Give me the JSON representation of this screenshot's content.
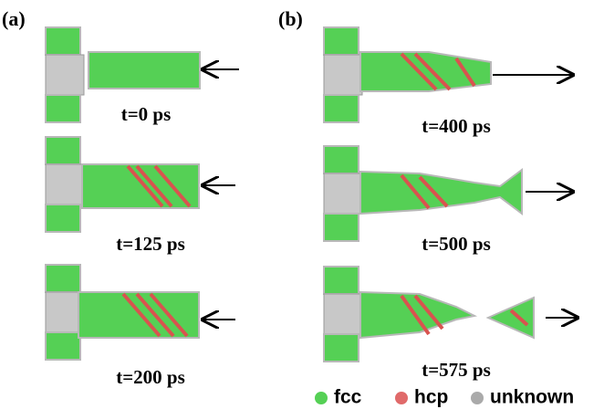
{
  "panels": [
    {
      "label": "(a)",
      "snapshots": [
        "t=0 ps",
        "t=125 ps",
        "t=200 ps"
      ]
    },
    {
      "label": "(b)",
      "snapshots": [
        "t=400 ps",
        "t=500 ps",
        "t=575 ps"
      ]
    }
  ],
  "legend": [
    {
      "label": "fcc",
      "color": "#55d055"
    },
    {
      "label": "hcp",
      "color": "#e06a6a"
    },
    {
      "label": "unknown",
      "color": "#aaaaaa"
    }
  ]
}
